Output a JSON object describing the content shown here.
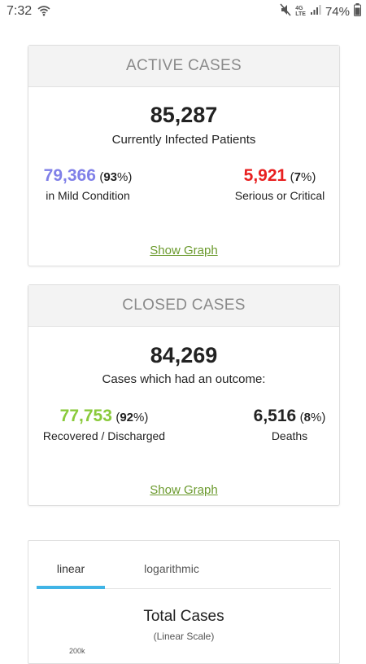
{
  "status_bar": {
    "time": "7:32",
    "battery": "74%",
    "network": "4G LTE"
  },
  "active_cases": {
    "title": "ACTIVE CASES",
    "total": "85,287",
    "total_label": "Currently Infected Patients",
    "mild": {
      "value": "79,366",
      "pct": "93",
      "label": "in Mild Condition",
      "color": "#8080e8"
    },
    "serious": {
      "value": "5,921",
      "pct": "7",
      "label": "Serious or Critical",
      "color": "#e82020"
    },
    "link": "Show Graph"
  },
  "closed_cases": {
    "title": "CLOSED CASES",
    "total": "84,269",
    "total_label": "Cases which had an outcome:",
    "recovered": {
      "value": "77,753",
      "pct": "92",
      "label": "Recovered / Discharged",
      "color": "#8aca3b"
    },
    "deaths": {
      "value": "6,516",
      "pct": "8",
      "label": "Deaths",
      "color": "#222222"
    },
    "link": "Show Graph"
  },
  "chart": {
    "tabs": [
      "linear",
      "logarithmic"
    ],
    "active_tab": "linear",
    "title": "Total Cases",
    "subtitle": "(Linear Scale)",
    "y_tick_top": "200k",
    "accent": "#40b4e6"
  }
}
